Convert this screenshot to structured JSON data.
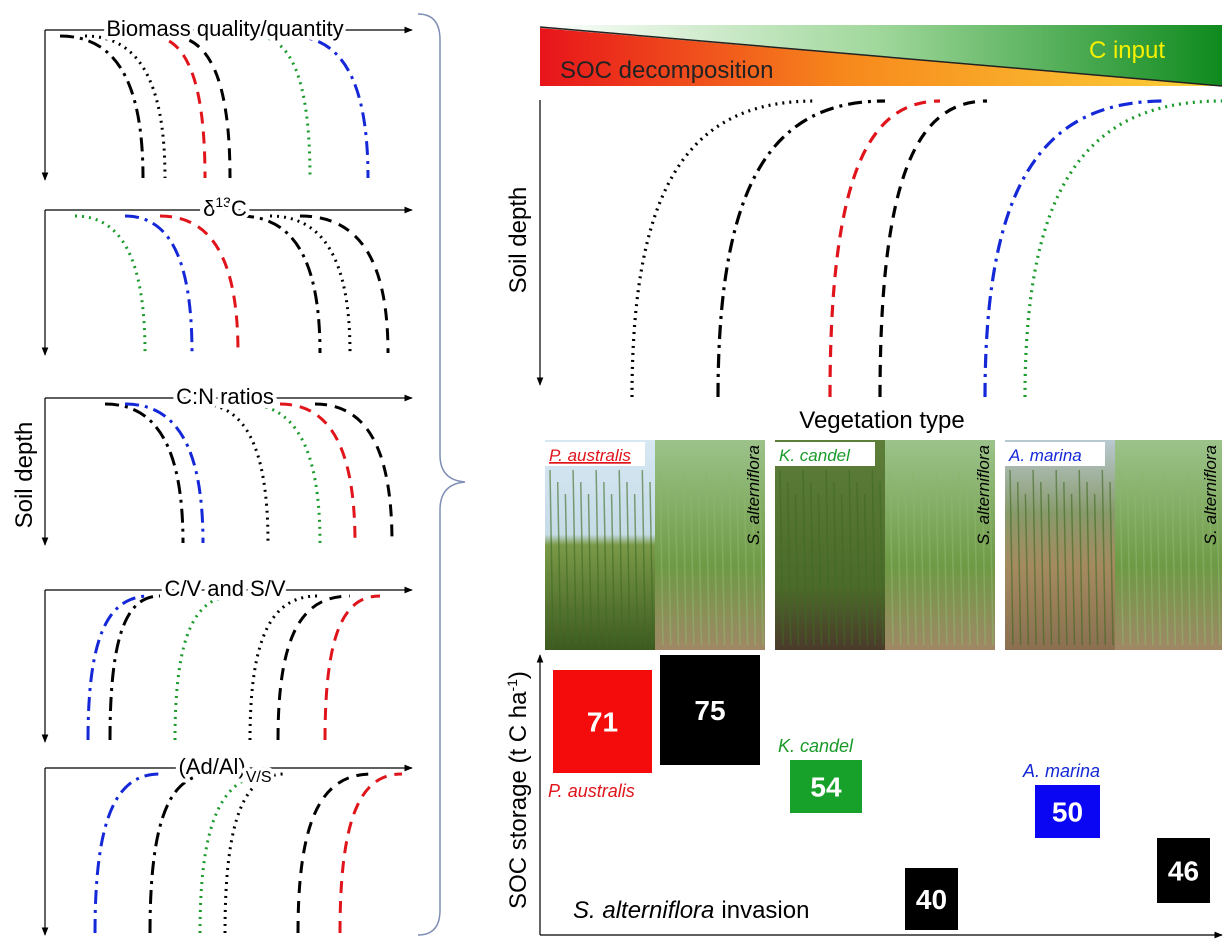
{
  "left": {
    "y_label": "Soil depth",
    "panels": [
      {
        "title": "Biomass quality/quantity"
      },
      {
        "title": "δ",
        "title_sup": "13",
        "title_end": "C"
      },
      {
        "title": "C:N ratios"
      },
      {
        "title": "C/V and S/V"
      },
      {
        "title": "(Ad/Al)",
        "title_sub": "V/S"
      }
    ]
  },
  "gradient": {
    "left_label": "SOC decomposition",
    "right_label": "C input"
  },
  "depth_panel": {
    "y_label": "Soil depth",
    "x_label": "Vegetation type"
  },
  "photos": [
    {
      "label": "P. australis"
    },
    {
      "label": "S. alterniflora"
    },
    {
      "label": "K. candel"
    },
    {
      "label": "S. alterniflora"
    },
    {
      "label": "A. marina"
    },
    {
      "label": "S. alterniflora"
    }
  ],
  "storage": {
    "y_label": "SOC storage (t C ha",
    "y_label_sup": "-1",
    "y_label_end": ")",
    "invasion_species": "S. alterniflora",
    "invasion_text": "invasion",
    "boxes": [
      {
        "label": "P. australis",
        "value": 71
      },
      {
        "value": 75
      },
      {
        "label": "K. candel",
        "value": 54
      },
      {
        "value": 40
      },
      {
        "label": "A. marina",
        "value": 50
      },
      {
        "value": 46
      }
    ]
  }
}
